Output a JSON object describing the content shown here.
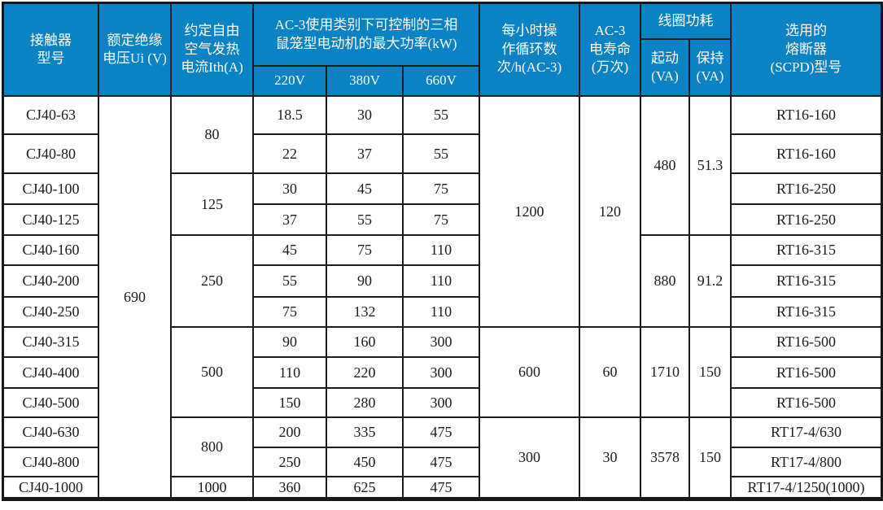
{
  "colors": {
    "header_bg": "#0a82c3",
    "header_text": "#ffffff",
    "grid_line": "#1c1c1c",
    "body_bg": "#ffffff",
    "body_text": "#1c1c1c"
  },
  "table": {
    "header": {
      "model": "接触器\n型号",
      "rated_voltage": "额定绝缘\n电压Ui (V)",
      "thermal_current": "约定自由\n空气发热\n电流Ith(A)",
      "max_power_group": "AC-3使用类别下可控制的三相\n鼠笼型电动机的最大功率(kW)",
      "v220": "220V",
      "v380": "380V",
      "v660": "660V",
      "ops_per_hour": "每小时操\n作循环数\n次/h(AC-3)",
      "electrical_life": "AC-3\n电寿命\n(万次)",
      "coil_power": "线圈功耗",
      "coil_start": "起动\n(VA)",
      "coil_hold": "保持\n(VA)",
      "fuse": "选用的\n熔断器\n(SCPD)型号"
    },
    "rated_insulation_voltage": "690",
    "rows": [
      {
        "model": "CJ40-63",
        "p220": "18.5",
        "p380": "30",
        "p660": "55",
        "fuse": "RT16-160"
      },
      {
        "model": "CJ40-80",
        "p220": "22",
        "p380": "37",
        "p660": "55",
        "fuse": "RT16-160"
      },
      {
        "model": "CJ40-100",
        "p220": "30",
        "p380": "45",
        "p660": "75",
        "fuse": "RT16-250"
      },
      {
        "model": "CJ40-125",
        "p220": "37",
        "p380": "55",
        "p660": "75",
        "fuse": "RT16-250"
      },
      {
        "model": "CJ40-160",
        "p220": "45",
        "p380": "75",
        "p660": "110",
        "fuse": "RT16-315"
      },
      {
        "model": "CJ40-200",
        "p220": "55",
        "p380": "90",
        "p660": "110",
        "fuse": "RT16-315"
      },
      {
        "model": "CJ40-250",
        "p220": "75",
        "p380": "132",
        "p660": "110",
        "fuse": "RT16-315"
      },
      {
        "model": "CJ40-315",
        "p220": "90",
        "p380": "160",
        "p660": "300",
        "fuse": "RT16-500"
      },
      {
        "model": "CJ40-400",
        "p220": "110",
        "p380": "220",
        "p660": "300",
        "fuse": "RT16-500"
      },
      {
        "model": "CJ40-500",
        "p220": "150",
        "p380": "280",
        "p660": "300",
        "fuse": "RT16-500"
      },
      {
        "model": "CJ40-630",
        "p220": "200",
        "p380": "335",
        "p660": "475",
        "fuse": "RT17-4/630"
      },
      {
        "model": "CJ40-800",
        "p220": "250",
        "p380": "450",
        "p660": "475",
        "fuse": "RT17-4/800"
      },
      {
        "model": "CJ40-1000",
        "p220": "360",
        "p380": "625",
        "p660": "475",
        "fuse": "RT17-4/1250(1000)"
      }
    ],
    "thermal_current_groups": [
      {
        "value": "80",
        "span": 2
      },
      {
        "value": "125",
        "span": 2
      },
      {
        "value": "250",
        "span": 3
      },
      {
        "value": "500",
        "span": 3
      },
      {
        "value": "800",
        "span": 2
      },
      {
        "value": "1000",
        "span": 1
      }
    ],
    "ops_life_groups": [
      {
        "ops": "1200",
        "life": "120",
        "span": 7
      },
      {
        "ops": "600",
        "life": "60",
        "span": 3
      },
      {
        "ops": "300",
        "life": "30",
        "span": 3
      }
    ],
    "coil_groups": [
      {
        "start": "480",
        "hold": "51.3",
        "span": 4
      },
      {
        "start": "880",
        "hold": "91.2",
        "span": 3
      },
      {
        "start": "1710",
        "hold": "150",
        "span": 3
      },
      {
        "start": "3578",
        "hold": "150",
        "span": 3
      }
    ]
  }
}
